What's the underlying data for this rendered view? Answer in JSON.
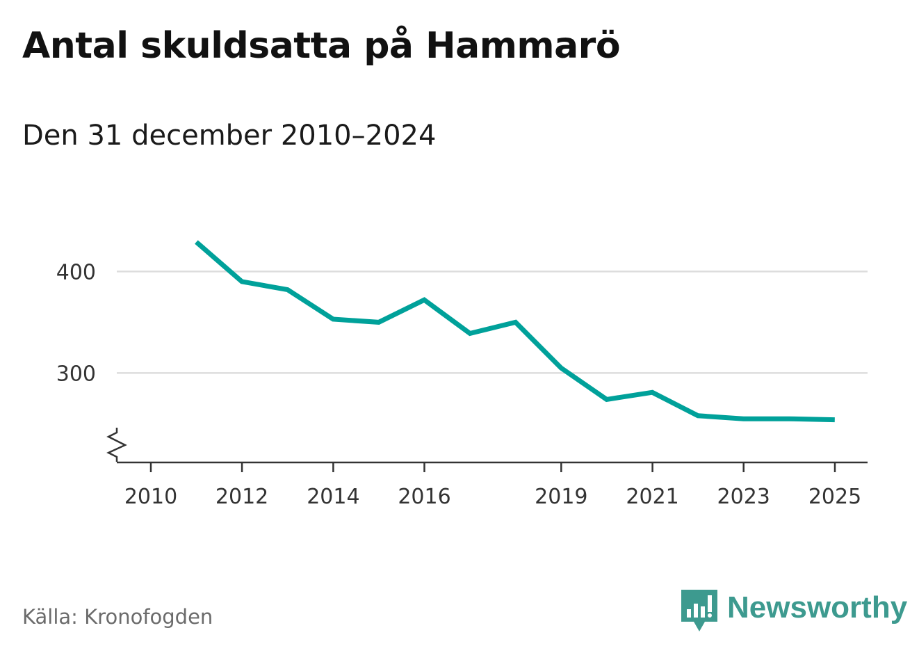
{
  "header": {
    "title": "Antal skuldsatta på Hammarö",
    "subtitle": "Den 31 december 2010–2024"
  },
  "footer": {
    "source": "Källa: Kronofogden",
    "brand": "Newsworthy"
  },
  "colors": {
    "line": "#00a19a",
    "grid": "#dddddd",
    "axis": "#333333",
    "tick_text": "#333333",
    "brand": "#3d9a8f"
  },
  "chart_data": {
    "type": "line",
    "title": "Antal skuldsatta på Hammarö",
    "subtitle": "Den 31 december 2010–2024",
    "x": [
      "2010-12-31",
      "2011-12-31",
      "2012-12-31",
      "2013-12-31",
      "2014-12-31",
      "2015-12-31",
      "2016-12-31",
      "2017-12-31",
      "2018-12-31",
      "2019-12-31",
      "2020-12-31",
      "2021-12-31",
      "2022-12-31",
      "2023-12-31",
      "2024-12-31"
    ],
    "series": [
      {
        "values": [
          429,
          390,
          382,
          353,
          350,
          372,
          339,
          350,
          305,
          274,
          281,
          258,
          255,
          255,
          254
        ]
      }
    ],
    "x_ticks": [
      "2010",
      "2012",
      "2014",
      "2016",
      "2019",
      "2021",
      "2023",
      "2025"
    ],
    "y_ticks": [
      300,
      400
    ],
    "ylim": [
      212,
      430
    ],
    "y_axis_break": true,
    "grid": "horizontal",
    "legend": "none"
  }
}
